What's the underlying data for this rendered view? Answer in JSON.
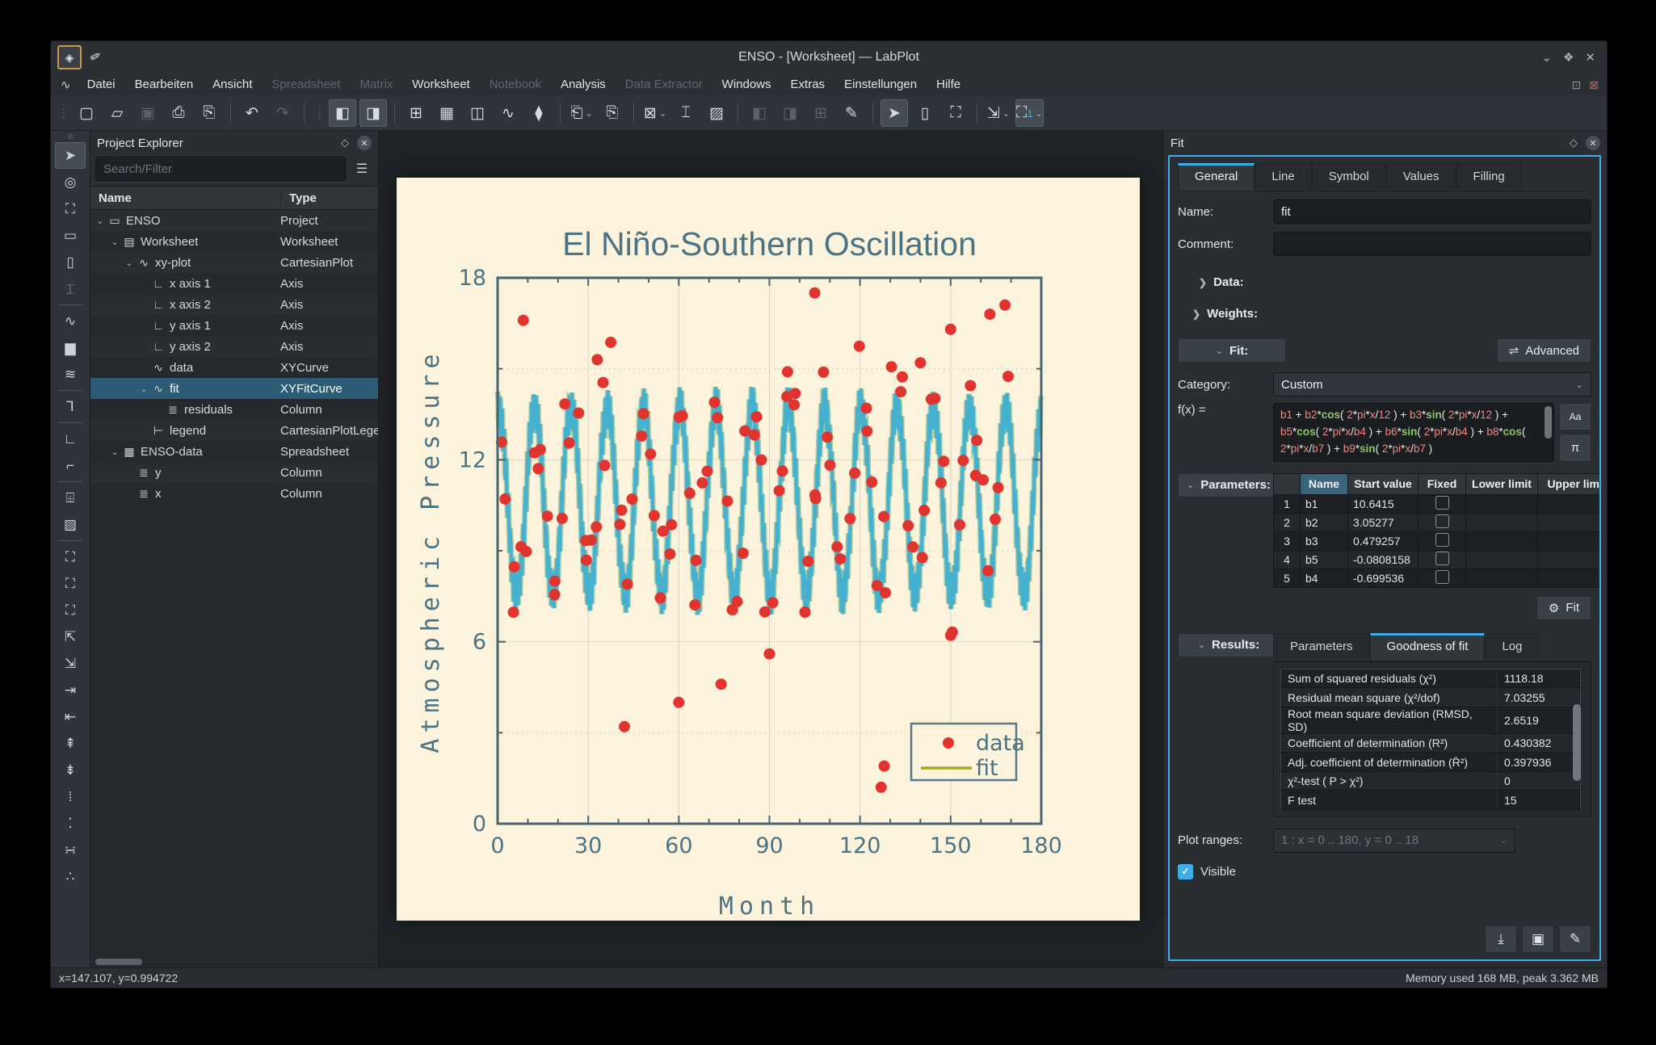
{
  "window": {
    "title": "ENSO - [Worksheet] — LabPlot"
  },
  "titlebar": {
    "app_icon": "◈",
    "pin_icon": "✐",
    "buttons": [
      {
        "name": "shade-button",
        "glyph": "⌄"
      },
      {
        "name": "maximize-button",
        "glyph": "❖"
      },
      {
        "name": "close-button",
        "glyph": "✕"
      }
    ]
  },
  "menubar": {
    "logo_glyph": "∿",
    "items": [
      {
        "label": "Datei",
        "enabled": true
      },
      {
        "label": "Bearbeiten",
        "enabled": true
      },
      {
        "label": "Ansicht",
        "enabled": true
      },
      {
        "label": "Spreadsheet",
        "enabled": false
      },
      {
        "label": "Matrix",
        "enabled": false
      },
      {
        "label": "Worksheet",
        "enabled": true
      },
      {
        "label": "Notebook",
        "enabled": false
      },
      {
        "label": "Analysis",
        "enabled": true
      },
      {
        "label": "Data Extractor",
        "enabled": false
      },
      {
        "label": "Windows",
        "enabled": true
      },
      {
        "label": "Extras",
        "enabled": true
      },
      {
        "label": "Einstellungen",
        "enabled": true
      },
      {
        "label": "Hilfe",
        "enabled": true
      }
    ],
    "right_icons": [
      {
        "name": "restore-subwindow-icon",
        "glyph": "⊡"
      },
      {
        "name": "close-subwindow-icon",
        "glyph": "⊠"
      }
    ]
  },
  "toolbar": {
    "items": [
      {
        "h": 1
      },
      {
        "n": "new-document-button",
        "g": "▢",
        "s": "normal"
      },
      {
        "n": "open-document-button",
        "g": "▱",
        "s": "normal"
      },
      {
        "n": "save-button",
        "g": "▣",
        "s": "disabled"
      },
      {
        "n": "print-button",
        "g": "⎙",
        "s": "normal"
      },
      {
        "n": "print-preview-button",
        "g": "⎘",
        "s": "normal"
      },
      {
        "sep": 1
      },
      {
        "n": "undo-button",
        "g": "↶",
        "s": "normal"
      },
      {
        "n": "redo-button",
        "g": "↷",
        "s": "disabled"
      },
      {
        "sep": 1
      },
      {
        "h": 1
      },
      {
        "n": "toggle-project-explorer-button",
        "g": "◧",
        "s": "pressed"
      },
      {
        "n": "toggle-properties-explorer-button",
        "g": "◨",
        "s": "pressed"
      },
      {
        "sep": 1
      },
      {
        "n": "new-spreadsheet-button",
        "g": "⊞",
        "s": "normal"
      },
      {
        "n": "new-matrix-button",
        "g": "▦",
        "s": "normal"
      },
      {
        "n": "new-workbook-button",
        "g": "◫",
        "s": "normal"
      },
      {
        "n": "new-datapicker-button",
        "g": "∿",
        "s": "normal"
      },
      {
        "n": "color-theme-button",
        "g": "⧫",
        "s": "normal"
      },
      {
        "sep": 1
      },
      {
        "n": "import-button",
        "g": "⎗",
        "s": "normal",
        "chev": true
      },
      {
        "n": "export-button",
        "g": "⎘",
        "s": "normal"
      },
      {
        "sep": 1
      },
      {
        "n": "plot-actions-button",
        "g": "⊠",
        "s": "normal",
        "chev": true
      },
      {
        "n": "add-text-button",
        "g": "⌶",
        "s": "normal"
      },
      {
        "n": "add-image-button",
        "g": "▨",
        "s": "normal"
      },
      {
        "sep": 1
      },
      {
        "n": "layout-horizontal-button",
        "g": "◧",
        "s": "disabled"
      },
      {
        "n": "layout-vertical-button",
        "g": "◨",
        "s": "disabled"
      },
      {
        "n": "layout-grid-button",
        "g": "⊞",
        "s": "disabled"
      },
      {
        "n": "edit-layout-button",
        "g": "✎",
        "s": "normal"
      },
      {
        "sep": 1
      },
      {
        "n": "select-mode-button",
        "g": "➤",
        "s": "pressed"
      },
      {
        "n": "navigate-mode-button",
        "g": "▯",
        "s": "normal"
      },
      {
        "n": "zoom-select-mode-button",
        "g": "⛶",
        "s": "normal"
      },
      {
        "sep": 1
      },
      {
        "n": "magnification-button",
        "g": "⇲",
        "s": "normal",
        "chev": true
      },
      {
        "n": "zoom-level-button",
        "g": "⛶",
        "s": "pressed",
        "chev": true,
        "blue_text": "1"
      }
    ]
  },
  "left_toolbar": {
    "items": [
      {
        "n": "cursor-tool",
        "g": "➤",
        "s": "active"
      },
      {
        "n": "crosshair-tool",
        "g": "◎",
        "s": "normal"
      },
      {
        "n": "select-region-tool",
        "g": "⛶",
        "s": "normal"
      },
      {
        "n": "select-x-region-tool",
        "g": "▭",
        "s": "normal"
      },
      {
        "n": "select-y-region-tool",
        "g": "▯",
        "s": "normal"
      },
      {
        "n": "text-cursor-tool",
        "g": "Ɪ",
        "s": "disabled"
      },
      {
        "sep": 1
      },
      {
        "n": "add-xy-curve-tool",
        "g": "∿",
        "s": "normal"
      },
      {
        "n": "add-histogram-tool",
        "g": "▆",
        "s": "normal"
      },
      {
        "n": "add-fit-curve-tool",
        "g": "≋",
        "s": "normal"
      },
      {
        "sep": 1
      },
      {
        "n": "add-text-label-tool",
        "g": "Ꞁ",
        "s": "normal"
      },
      {
        "sep": 1
      },
      {
        "n": "add-x-axis-tool",
        "g": "∟",
        "s": "normal"
      },
      {
        "n": "add-y-axis-tool",
        "g": "⌐",
        "s": "normal"
      },
      {
        "sep": 1
      },
      {
        "n": "add-text-frame-tool",
        "g": "⌹",
        "s": "normal"
      },
      {
        "n": "add-image-tool",
        "g": "▨",
        "s": "normal"
      },
      {
        "sep": 1
      },
      {
        "n": "zoom-region-tool",
        "g": "⛶",
        "s": "normal"
      },
      {
        "n": "zoom-x-region-tool",
        "g": "⛶",
        "s": "normal"
      },
      {
        "n": "zoom-y-region-tool",
        "g": "⛶",
        "s": "normal"
      },
      {
        "n": "auto-scale-tool",
        "g": "⇱",
        "s": "normal"
      },
      {
        "n": "auto-scale-xy-tool",
        "g": "⇲",
        "s": "normal"
      },
      {
        "n": "shift-right-tool",
        "g": "⇥",
        "s": "normal"
      },
      {
        "n": "shift-left-tool",
        "g": "⇤",
        "s": "normal"
      },
      {
        "n": "shift-up-tool",
        "g": "⇞",
        "s": "normal"
      },
      {
        "n": "shift-down-tool",
        "g": "⇟",
        "s": "normal"
      },
      {
        "n": "zoom-in-y-tool",
        "g": "⁞",
        "s": "normal"
      },
      {
        "n": "zoom-out-y-tool",
        "g": "⁚",
        "s": "normal"
      },
      {
        "n": "zoom-in-x-tool",
        "g": "∺",
        "s": "normal"
      },
      {
        "n": "zoom-out-x-tool",
        "g": "∴",
        "s": "normal"
      }
    ]
  },
  "project_explorer": {
    "title": "Project Explorer",
    "float_icon": "◇",
    "close_icon": "✕",
    "search_placeholder": "Search/Filter",
    "filter_icon": "☰",
    "col_name": "Name",
    "col_type": "Type",
    "icon_glyphs": {
      "folder": "▭",
      "worksheet": "▤",
      "plot": "∿",
      "axis": "∟",
      "curve": "∿",
      "column": "≣",
      "legend": "⊢",
      "spreadsheet": "▦"
    },
    "rows": [
      {
        "name": "ENSO",
        "type": "Project",
        "depth": 0,
        "exp": true,
        "icon": "folder",
        "selected": false
      },
      {
        "name": "Worksheet",
        "type": "Worksheet",
        "depth": 1,
        "exp": true,
        "icon": "worksheet",
        "selected": false
      },
      {
        "name": "xy-plot",
        "type": "CartesianPlot",
        "depth": 2,
        "exp": true,
        "icon": "plot",
        "selected": false
      },
      {
        "name": "x axis 1",
        "type": "Axis",
        "depth": 3,
        "exp": false,
        "icon": "axis",
        "selected": false
      },
      {
        "name": "x axis 2",
        "type": "Axis",
        "depth": 3,
        "exp": false,
        "icon": "axis",
        "selected": false
      },
      {
        "name": "y axis 1",
        "type": "Axis",
        "depth": 3,
        "exp": false,
        "icon": "axis",
        "selected": false
      },
      {
        "name": "y axis 2",
        "type": "Axis",
        "depth": 3,
        "exp": false,
        "icon": "axis",
        "selected": false
      },
      {
        "name": "data",
        "type": "XYCurve",
        "depth": 3,
        "exp": false,
        "icon": "curve",
        "selected": false
      },
      {
        "name": "fit",
        "type": "XYFitCurve",
        "depth": 3,
        "exp": true,
        "icon": "curve",
        "selected": true
      },
      {
        "name": "residuals",
        "type": "Column",
        "depth": 4,
        "exp": false,
        "icon": "column",
        "selected": false
      },
      {
        "name": "legend",
        "type": "CartesianPlotLegend",
        "depth": 3,
        "exp": false,
        "icon": "legend",
        "selected": false
      },
      {
        "name": "ENSO-data",
        "type": "Spreadsheet",
        "depth": 1,
        "exp": true,
        "icon": "spreadsheet",
        "selected": false
      },
      {
        "name": "y",
        "type": "Column",
        "depth": 2,
        "exp": false,
        "icon": "column",
        "selected": false
      },
      {
        "name": "x",
        "type": "Column",
        "depth": 2,
        "exp": false,
        "icon": "column",
        "selected": false
      }
    ]
  },
  "fit_panel": {
    "title": "Fit",
    "float_icon": "◇",
    "close_icon": "✕",
    "tabs": [
      "General",
      "Line",
      "Symbol",
      "Values",
      "Filling"
    ],
    "active_tab": 0,
    "name_label": "Name:",
    "name_value": "fit",
    "comment_label": "Comment:",
    "data_label": "Data:",
    "weights_label": "Weights:",
    "fit_label": "Fit:",
    "advanced_label": "Advanced",
    "advanced_icon": "⇌",
    "category_label": "Category:",
    "category_value": "Custom",
    "fx_label": "f(x) =",
    "formula": "b1 + b2*cos( 2*pi*x/12 ) + b3*sin( 2*pi*x/12 ) + b5*cos( 2*pi*x/b4 ) + b6*sin( 2*pi*x/b4 ) + b8*cos( 2*pi*x/b7 ) + b9*sin( 2*pi*x/b7 )",
    "case_button": "Aa",
    "pi_button": "π",
    "params_label": "Parameters:",
    "param_headers": [
      "Name",
      "Start value",
      "Fixed",
      "Lower limit",
      "Upper limit"
    ],
    "param_rows": [
      {
        "num": "1",
        "name": "b1",
        "start": "10.6415"
      },
      {
        "num": "2",
        "name": "b2",
        "start": "3.05277"
      },
      {
        "num": "3",
        "name": "b3",
        "start": "0.479257"
      },
      {
        "num": "4",
        "name": "b5",
        "start": "-0.0808158"
      },
      {
        "num": "5",
        "name": "b4",
        "start": "-0.699536"
      }
    ],
    "fit_button_label": "Fit",
    "fit_button_icon": "⚙",
    "results_label": "Results:",
    "results_tabs": [
      "Parameters",
      "Goodness of fit",
      "Log"
    ],
    "results_active_tab": 1,
    "goodness_rows": [
      {
        "label": "Sum of squared residuals (χ²)",
        "value": "1118.18"
      },
      {
        "label": "Residual mean square (χ²/dof)",
        "value": "7.03255"
      },
      {
        "label": "Root mean square deviation (RMSD, SD)",
        "value": "2.6519"
      },
      {
        "label": "Coefficient of determination (R²)",
        "value": "0.430382"
      },
      {
        "label": "Adj. coefficient of determination (R̄²)",
        "value": "0.397936"
      },
      {
        "label": "χ²-test ( P > χ²)",
        "value": "0"
      },
      {
        "label": "F test",
        "value": "15"
      }
    ],
    "plot_ranges_label": "Plot ranges:",
    "plot_ranges_value": "1 : x = 0 .. 180, y = 0 .. 18",
    "visible_label": "Visible",
    "bottom_buttons": [
      {
        "name": "recalculate-button",
        "glyph": "⤓"
      },
      {
        "name": "save-fit-button",
        "glyph": "▣"
      },
      {
        "name": "save-fit-as-button",
        "glyph": "✎"
      }
    ]
  },
  "chart_data": {
    "type": "scatter+line",
    "title": "El Niño-Southern Oscillation",
    "xlabel": "Month",
    "ylabel": "Atmospheric Pressure",
    "xlim": [
      0,
      180
    ],
    "ylim": [
      0,
      18
    ],
    "xticks": [
      0,
      30,
      60,
      90,
      120,
      150,
      180
    ],
    "yticks": [
      0,
      6,
      12,
      18
    ],
    "grid": true,
    "legend_position": "bottom-right",
    "legend": [
      {
        "label": "data",
        "marker": "dot",
        "color": "#e2342f"
      },
      {
        "label": "fit",
        "marker": "line",
        "color": "#a4a81e"
      }
    ],
    "fit_model": {
      "b1": 10.6415,
      "b2": 3.05277,
      "b3": 0.479257,
      "b5": -0.0808158,
      "b4": -0.699536,
      "period_months": 12
    },
    "n_scatter_points": 100,
    "scatter_outliers": [
      [
        8.5,
        16.6
      ],
      [
        33,
        15.3
      ],
      [
        42,
        3.2
      ],
      [
        60,
        4.0
      ],
      [
        74,
        4.6
      ],
      [
        90,
        5.6
      ],
      [
        96,
        14.9
      ],
      [
        105,
        17.5
      ],
      [
        127,
        1.2
      ],
      [
        128,
        1.9
      ],
      [
        140,
        15.2
      ],
      [
        150,
        16.3
      ],
      [
        163,
        16.8
      ],
      [
        168,
        17.1
      ]
    ],
    "colors": {
      "paper": "#fcf3dc",
      "axis": "#47646f",
      "labels": "#4c7383",
      "grid": "#d8d2c2",
      "curve": "#3fafd0",
      "curve_edge": "#4a9e63",
      "scatter": "#e2342f"
    }
  },
  "status_bar": {
    "left": "x=147.107, y=0.994722",
    "right": "Memory used 168 MB, peak 3.362 MB"
  }
}
